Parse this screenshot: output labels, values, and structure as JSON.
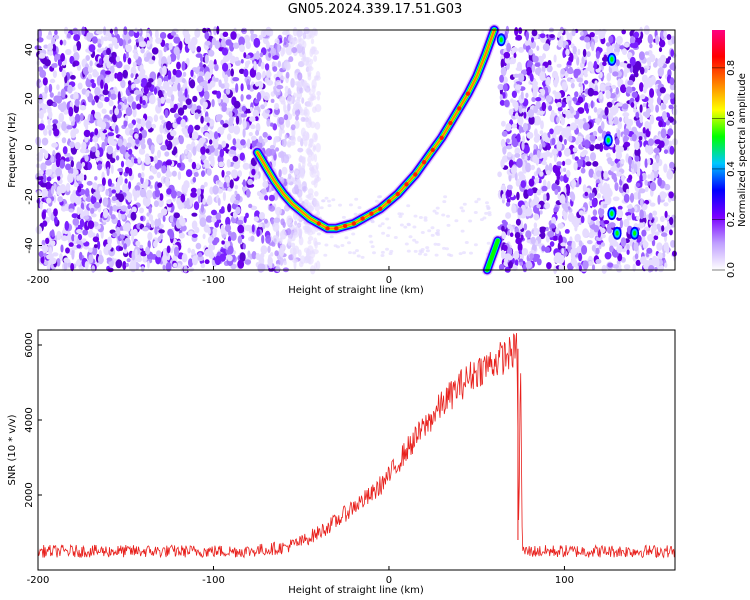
{
  "title": "GN05.2024.339.17.51.G03",
  "chart_data": [
    {
      "type": "heatmap",
      "xlabel": "Height of straight line (km)",
      "ylabel": "Frequency (Hz)",
      "xlim": [
        -200,
        163
      ],
      "ylim": [
        -50,
        48
      ],
      "xticks": [
        "-200",
        "-100",
        "0",
        "100"
      ],
      "yticks": [
        "40",
        "20",
        "0",
        "-20",
        "-40"
      ],
      "colorbar": {
        "label": "Normalized spectral amplitude",
        "range": [
          0,
          0.95
        ],
        "ticks": [
          "0.0",
          "0.2",
          "0.4",
          "0.6",
          "0.8"
        ],
        "colors": [
          "#ffffff",
          "#c0a0ff",
          "#7a00ff",
          "#0000ff",
          "#00c8ff",
          "#00ff00",
          "#ffff00",
          "#ff8000",
          "#ff0000",
          "#ff0080"
        ]
      },
      "signal_track": {
        "x": [
          -75,
          -70,
          -65,
          -60,
          -55,
          -50,
          -45,
          -40,
          -35,
          -30,
          -25,
          -20,
          -15,
          -10,
          -5,
          0,
          5,
          10,
          15,
          20,
          25,
          30,
          35,
          40,
          45,
          50,
          55,
          60
        ],
        "y": [
          -2,
          -8,
          -14,
          -19,
          -23,
          -26,
          -29,
          -31,
          -33,
          -33,
          -32,
          -31,
          -29,
          -27,
          -25,
          -22,
          -19,
          -15,
          -11,
          -6,
          -1,
          4,
          10,
          16,
          22,
          29,
          38,
          48
        ]
      },
      "aliased_track": {
        "x": [
          56,
          58,
          60,
          62
        ],
        "y": [
          -50,
          -46,
          -42,
          -38
        ]
      },
      "noise_regions_x": [
        [
          -200,
          -40
        ],
        [
          63,
          163
        ]
      ],
      "bright_spots": [
        {
          "x": 64,
          "y": 44
        },
        {
          "x": 127,
          "y": 36
        },
        {
          "x": 125,
          "y": 3
        },
        {
          "x": 127,
          "y": -27
        },
        {
          "x": 130,
          "y": -35
        },
        {
          "x": 140,
          "y": -35
        }
      ],
      "grid": false
    },
    {
      "type": "line",
      "xlabel": "Height of straight line (km)",
      "ylabel": "SNR (10 * v/v)",
      "xlim": [
        -200,
        163
      ],
      "ylim": [
        0,
        6400
      ],
      "xticks": [
        "-200",
        "-100",
        "0",
        "100"
      ],
      "yticks": [
        "6000",
        "4000",
        "2000"
      ],
      "series": [
        {
          "color": "#e8201c",
          "x": [
            -200,
            -180,
            -160,
            -140,
            -120,
            -100,
            -80,
            -60,
            -50,
            -40,
            -30,
            -20,
            -10,
            0,
            10,
            20,
            30,
            40,
            50,
            60,
            70,
            73,
            74,
            75,
            76,
            80,
            100,
            120,
            140,
            160
          ],
          "y": [
            500,
            500,
            500,
            500,
            500,
            500,
            500,
            600,
            750,
            1000,
            1300,
            1700,
            2000,
            2500,
            3200,
            3800,
            4400,
            4900,
            5300,
            5550,
            5800,
            5900,
            800,
            5800,
            500,
            500,
            500,
            500,
            500,
            500
          ],
          "noise_amplitude": 350
        }
      ],
      "grid": false
    }
  ]
}
